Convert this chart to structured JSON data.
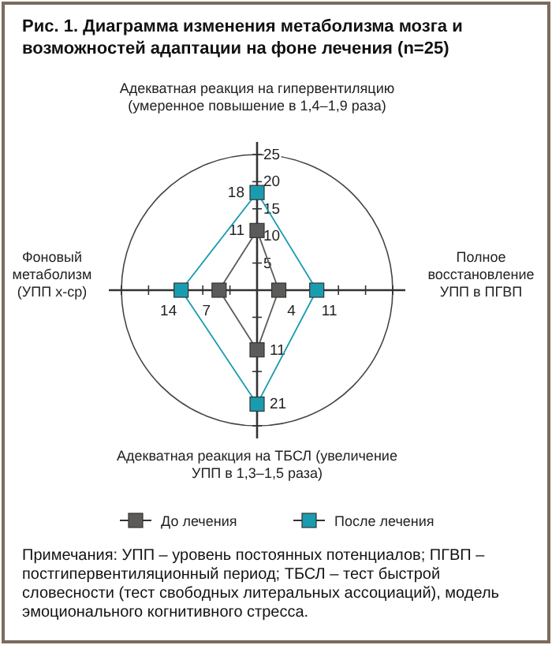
{
  "chart_data": {
    "type": "radar",
    "title": "Рис. 1. Диаграмма изменения метаболизма мозга и возможностей адаптации на фоне лечения (n=25)",
    "categories": [
      "Адекватная реакция на гипервентиляцию (умеренное повышение в 1,4–1,9 раза)",
      "Полное восстановление УПП в ПГВП",
      "Адекватная реакция на ТБСЛ (увеличение УПП в 1,3–1,5 раза)",
      "Фоновый метаболизм (УПП x-ср)"
    ],
    "series": [
      {
        "name": "До лечения",
        "color": "#5c5b5a",
        "values": [
          11,
          4,
          11,
          7
        ]
      },
      {
        "name": "После лечения",
        "color": "#1a9cb0",
        "values": [
          18,
          11,
          21,
          14
        ]
      }
    ],
    "ylim": [
      0,
      25
    ],
    "yticks": [
      5,
      10,
      15,
      20,
      25
    ],
    "data_labels": true,
    "marker": "square",
    "legend": "bottom",
    "annotations": [
      "Примечания: УПП – уровень постоянных потенциалов; ПГВП – постгипервентиляционный период; ТБСЛ – тест быстрой словесности (тест свободных литеральных ассоциаций), модель эмоционального когнитивного стресса."
    ]
  }
}
